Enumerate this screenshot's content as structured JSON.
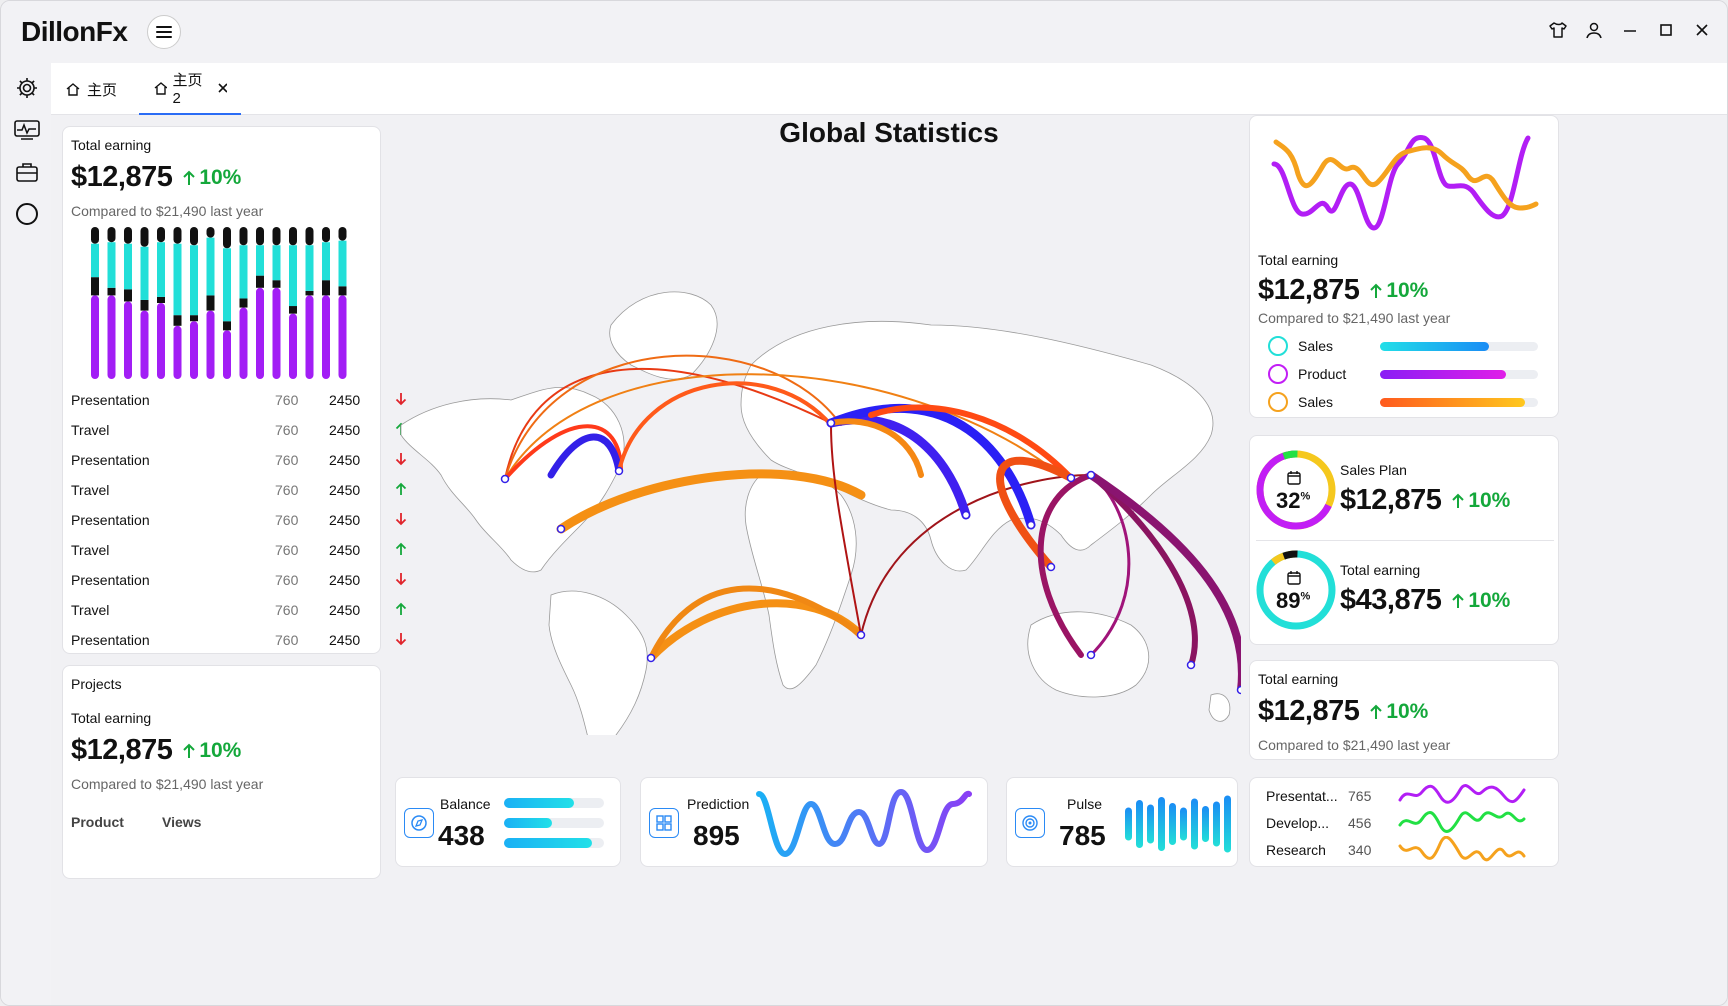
{
  "app": {
    "title": "DillonFx"
  },
  "tabs": [
    {
      "label": "主页"
    },
    {
      "label": "主页2"
    }
  ],
  "map": {
    "title": "Global Statistics"
  },
  "left_card": {
    "label": "Total earning",
    "value": "$12,875",
    "change": "10%",
    "compare": "Compared to $21,490 last year",
    "stack_chart": {
      "type": "bar",
      "series_colors": [
        "#a21ef5",
        "#111111",
        "#22dfd8",
        "#111111"
      ],
      "stacks": [
        [
          55,
          12,
          22,
          11
        ],
        [
          55,
          5,
          30,
          10
        ],
        [
          51,
          8,
          30,
          11
        ],
        [
          45,
          7,
          35,
          13
        ],
        [
          50,
          4,
          36,
          10
        ],
        [
          35,
          7,
          47,
          11
        ],
        [
          38,
          4,
          46,
          12
        ],
        [
          45,
          10,
          38,
          7
        ],
        [
          32,
          6,
          48,
          14
        ],
        [
          47,
          6,
          35,
          12
        ],
        [
          60,
          8,
          20,
          12
        ],
        [
          60,
          5,
          23,
          12
        ],
        [
          43,
          5,
          40,
          12
        ],
        [
          55,
          3,
          30,
          12
        ],
        [
          55,
          10,
          25,
          10
        ],
        [
          55,
          6,
          30,
          9
        ]
      ]
    },
    "rows": [
      {
        "name": "Presentation",
        "a": "760",
        "b": "2450",
        "dir": "down"
      },
      {
        "name": "Travel",
        "a": "760",
        "b": "2450",
        "dir": "up"
      },
      {
        "name": "Presentation",
        "a": "760",
        "b": "2450",
        "dir": "down"
      },
      {
        "name": "Travel",
        "a": "760",
        "b": "2450",
        "dir": "up"
      },
      {
        "name": "Presentation",
        "a": "760",
        "b": "2450",
        "dir": "down"
      },
      {
        "name": "Travel",
        "a": "760",
        "b": "2450",
        "dir": "up"
      },
      {
        "name": "Presentation",
        "a": "760",
        "b": "2450",
        "dir": "down"
      },
      {
        "name": "Travel",
        "a": "760",
        "b": "2450",
        "dir": "up"
      },
      {
        "name": "Presentation",
        "a": "760",
        "b": "2450",
        "dir": "down"
      }
    ]
  },
  "projects_card": {
    "title": "Projects",
    "label": "Total earning",
    "value": "$12,875",
    "change": "10%",
    "compare": "Compared to $21,490 last year",
    "col1": "Product",
    "col2": "Views"
  },
  "right_top_card": {
    "label": "Total earning",
    "value": "$12,875",
    "change": "10%",
    "compare": "Compared to $21,490 last year",
    "legend": [
      {
        "name": "Sales",
        "ring": "#22dfd8",
        "fill": 0.69,
        "from": "#22dfe8",
        "to": "#1a8cf5"
      },
      {
        "name": "Product",
        "ring": "#c21ef5",
        "fill": 0.8,
        "from": "#8a1ef5",
        "to": "#e01ee8"
      },
      {
        "name": "Sales",
        "ring": "#f5a21e",
        "fill": 0.92,
        "from": "#ff5a1e",
        "to": "#ffc81e"
      }
    ]
  },
  "ring_card": {
    "items": [
      {
        "label": "Sales Plan",
        "value": "$12,875",
        "change": "10%",
        "pct": "32",
        "pct_sign": "%"
      },
      {
        "label": "Total earning",
        "value": "$43,875",
        "change": "10%",
        "pct": "89",
        "pct_sign": "%"
      }
    ]
  },
  "right_bottom_card": {
    "label": "Total earning",
    "value": "$12,875",
    "change": "10%",
    "compare": "Compared to $21,490 last year"
  },
  "bottom": {
    "balance": {
      "label": "Balance",
      "value": "438",
      "bars": [
        0.7,
        0.48,
        0.88
      ]
    },
    "prediction": {
      "label": "Prediction",
      "value": "895"
    },
    "pulse": {
      "label": "Pulse",
      "value": "785",
      "bars": [
        0.55,
        0.8,
        0.65,
        0.9,
        0.7,
        0.55,
        0.85,
        0.6,
        0.75,
        0.95
      ]
    }
  },
  "list_card": {
    "rows": [
      {
        "name": "Presentat...",
        "value": "765",
        "color": "#b21ef5"
      },
      {
        "name": "Develop...",
        "value": "456",
        "color": "#22e044"
      },
      {
        "name": "Research",
        "value": "340",
        "color": "#f5a21e"
      }
    ]
  }
}
